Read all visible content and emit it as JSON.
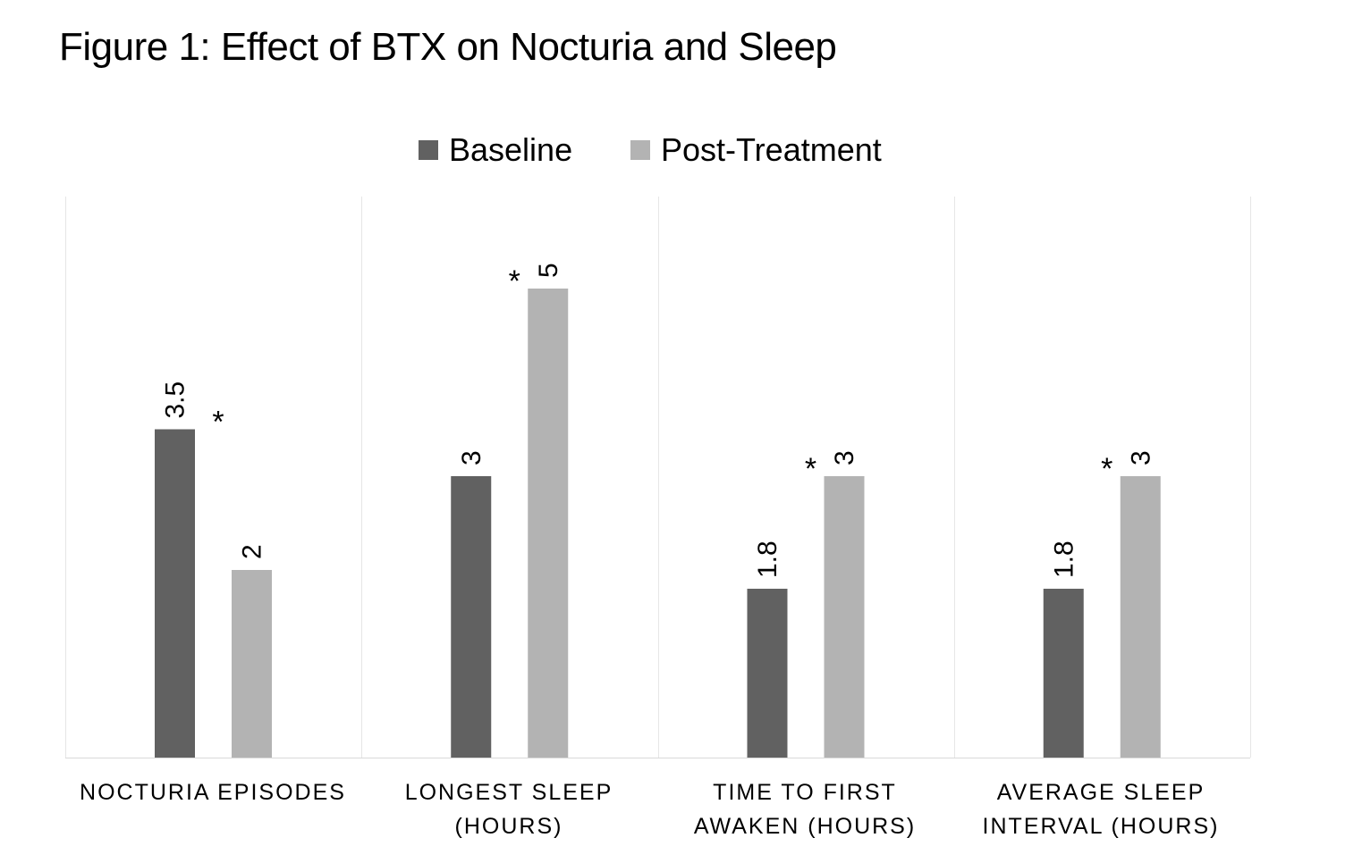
{
  "chart_data": {
    "type": "bar",
    "title": "Figure 1: Effect of BTX on Nocturia and Sleep",
    "xlabel": "",
    "ylabel": "",
    "ylim": [
      0,
      6
    ],
    "grid": false,
    "legend_position": "top-center",
    "categories": [
      "NOCTURIA EPISODES",
      "LONGEST SLEEP\n(HOURS)",
      "TIME TO FIRST\nAWAKEN (HOURS)",
      "AVERAGE SLEEP\nINTERVAL (HOURS)"
    ],
    "series": [
      {
        "name": "Baseline",
        "color": "#616161",
        "values": [
          3.5,
          3,
          1.8,
          1.8
        ],
        "labels": [
          "3.5",
          "3",
          "1.8",
          "1.8"
        ]
      },
      {
        "name": "Post-Treatment",
        "color": "#b3b3b3",
        "values": [
          2,
          5,
          3,
          3
        ],
        "labels": [
          "2",
          "5",
          "3",
          "3"
        ]
      }
    ],
    "annotations": [
      "*",
      "*",
      "*",
      "*"
    ],
    "colors": {
      "separator": "#e6e6e6",
      "text": "#000000"
    }
  }
}
